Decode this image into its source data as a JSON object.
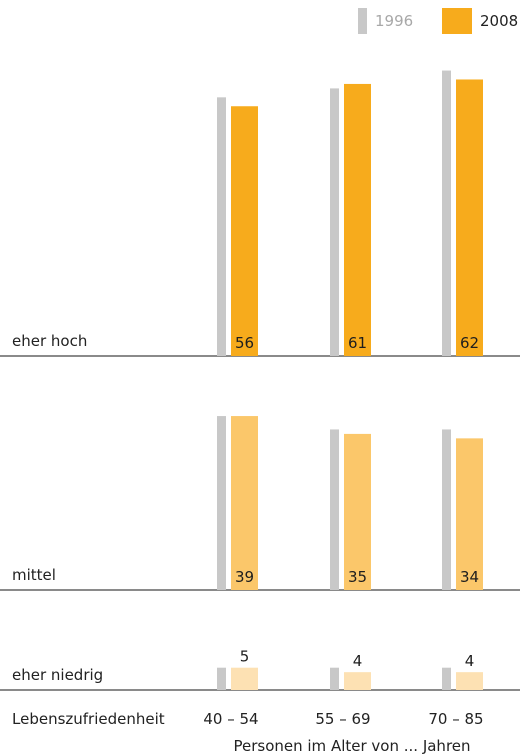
{
  "chart_data": {
    "type": "bar",
    "legend": {
      "position": "top-right",
      "entries": [
        {
          "name": "1996",
          "color": "#c8c8c8",
          "text_color": "#a8a8a8"
        },
        {
          "name": "2008",
          "color": "#f7ab1c",
          "text_color": "#222222"
        }
      ]
    },
    "categories": [
      "40 – 54",
      "55 – 69",
      "70 – 85"
    ],
    "row_header": "Lebenszufriedenheit",
    "xlabel": "Personen im Alter von ... Jahren",
    "groups": [
      {
        "label": "eher hoch",
        "color_2008": "#f7ab1c",
        "values_1996": [
          58,
          60,
          64
        ],
        "values_2008": [
          56,
          61,
          62
        ],
        "labels_2008": [
          "56",
          "61",
          "62"
        ]
      },
      {
        "label": "mittel",
        "color_2008": "#fbc76a",
        "values_1996": [
          39,
          36,
          36
        ],
        "values_2008": [
          39,
          35,
          34
        ],
        "labels_2008": [
          "39",
          "35",
          "34"
        ]
      },
      {
        "label": "eher niedrig",
        "color_2008": "#fde1b3",
        "values_1996": [
          5,
          5,
          5
        ],
        "values_2008": [
          5,
          4,
          4
        ],
        "labels_2008": [
          "5",
          "4",
          "4"
        ]
      }
    ]
  }
}
